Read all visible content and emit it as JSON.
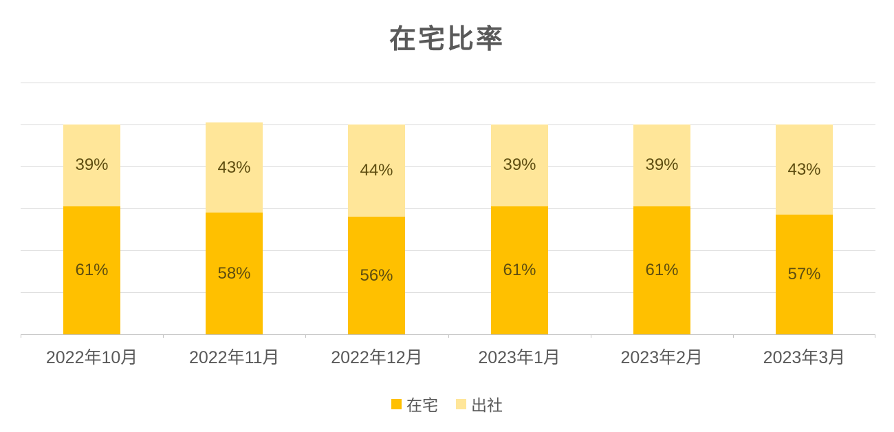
{
  "chart_data": {
    "type": "bar",
    "variant": "stacked-column",
    "title": "在宅比率",
    "categories": [
      "2022年10月",
      "2022年11月",
      "2022年12月",
      "2023年1月",
      "2023年2月",
      "2023年3月"
    ],
    "series": [
      {
        "name": "在宅",
        "color": "#FFC000",
        "values": [
          61,
          58,
          56,
          61,
          61,
          57
        ]
      },
      {
        "name": "出社",
        "color": "#FFE699",
        "values": [
          39,
          43,
          44,
          39,
          39,
          43
        ]
      }
    ],
    "value_suffix": "%",
    "data_label_color": "#5e4d10",
    "xlabel": "",
    "ylabel": "",
    "ylim": [
      0,
      120
    ],
    "grid_step": 20,
    "grid_on": true,
    "grid_color": "#d9d9d9",
    "axis_color": "#c3c3c3",
    "text_color": "#595959",
    "title_color": "#595959",
    "legend_position": "bottom",
    "legend_entries": [
      "在宅",
      "出社"
    ]
  }
}
